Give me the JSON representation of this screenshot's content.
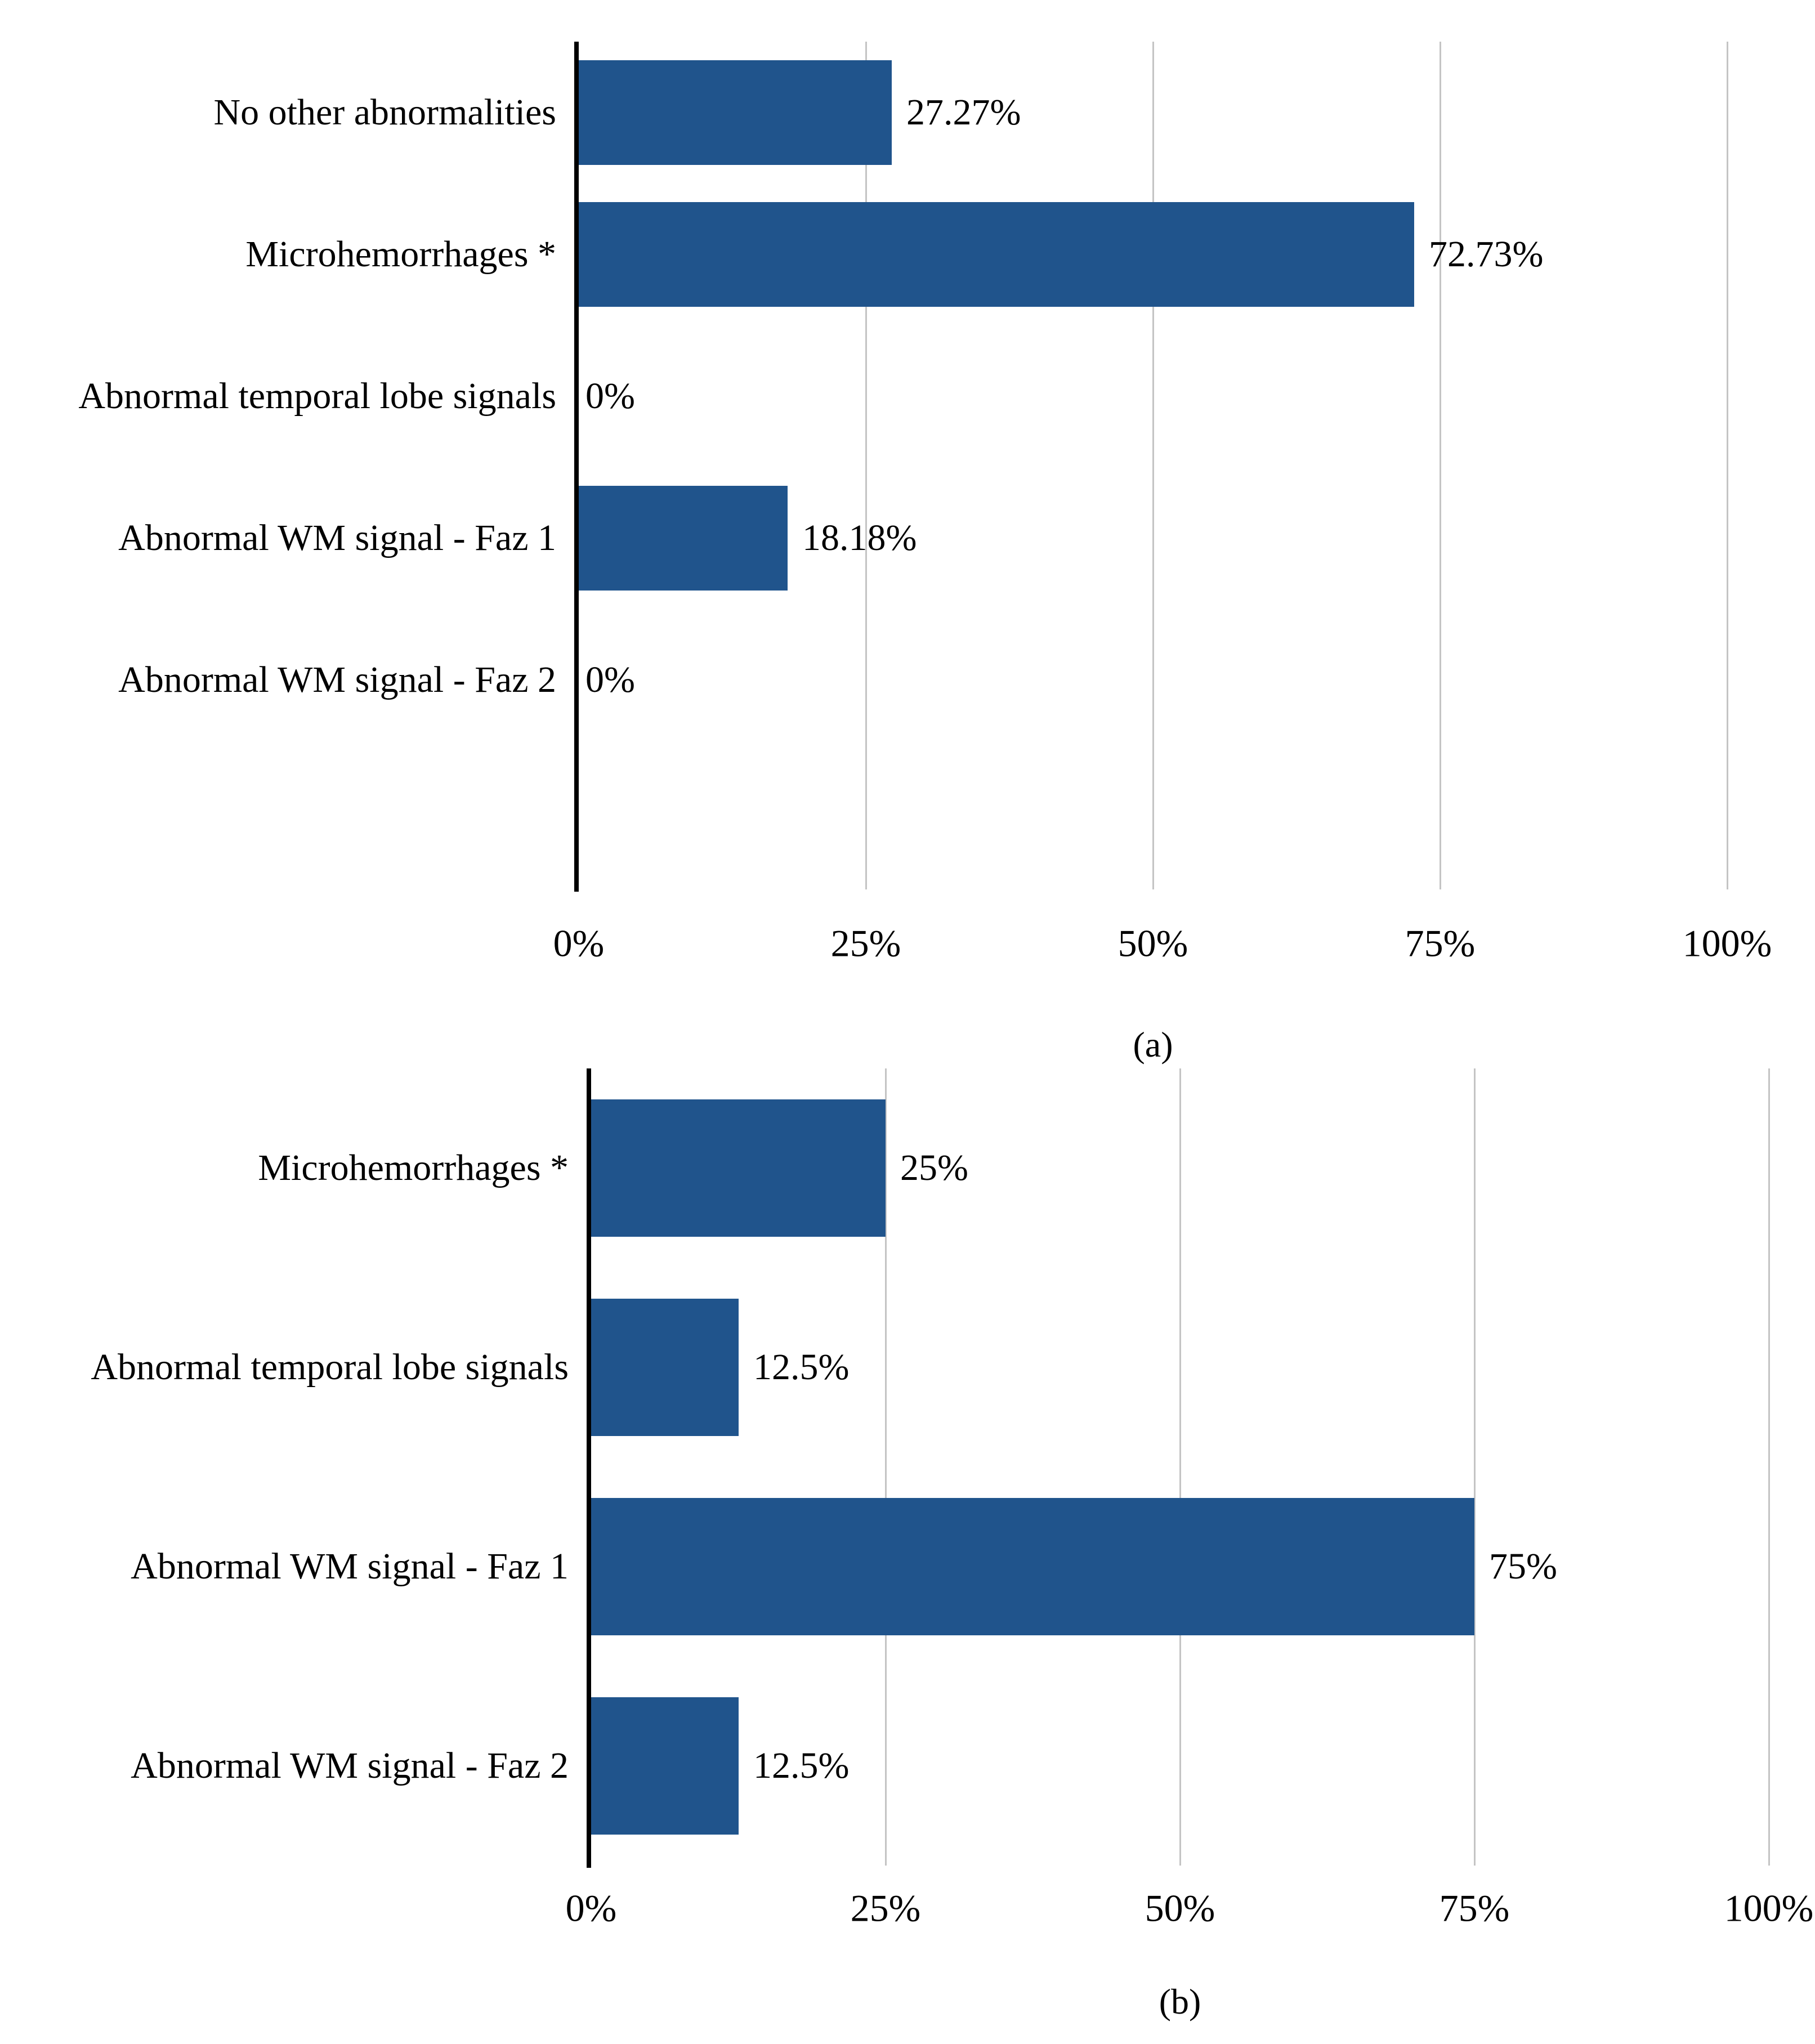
{
  "figure": {
    "background": "#ffffff",
    "description": "Two horizontal bar charts of MRI findings percentages"
  },
  "colors": {
    "bar": "#20548C",
    "gridline": "#C4C4C4",
    "axis": "#000000",
    "text": "#000000"
  },
  "chart_data": [
    {
      "id": "a",
      "type": "bar",
      "orientation": "horizontal",
      "caption": "(a)",
      "categories": [
        "No other abnormalities",
        "Microhemorrhages *",
        "Abnormal temporal lobe signals",
        "Abnormal WM signal - Faz 1",
        "Abnormal WM signal - Faz 2"
      ],
      "values": [
        27.27,
        72.73,
        0,
        18.18,
        0
      ],
      "value_labels": [
        "27.27%",
        "72.73%",
        "0%",
        "18.18%",
        "0%"
      ],
      "x_ticks": [
        "0%",
        "25%",
        "50%",
        "75%",
        "100%"
      ],
      "xlim": [
        0,
        100
      ],
      "grid": true,
      "legend": false
    },
    {
      "id": "b",
      "type": "bar",
      "orientation": "horizontal",
      "caption": "(b)",
      "categories": [
        "Microhemorrhages *",
        "Abnormal temporal lobe signals",
        "Abnormal WM signal - Faz 1",
        "Abnormal WM signal - Faz 2"
      ],
      "values": [
        25,
        12.5,
        75,
        12.5
      ],
      "value_labels": [
        "25%",
        "12.5%",
        "75%",
        "12.5%"
      ],
      "x_ticks": [
        "0%",
        "25%",
        "50%",
        "75%",
        "100%"
      ],
      "xlim": [
        0,
        100
      ],
      "grid": true,
      "legend": false
    }
  ]
}
